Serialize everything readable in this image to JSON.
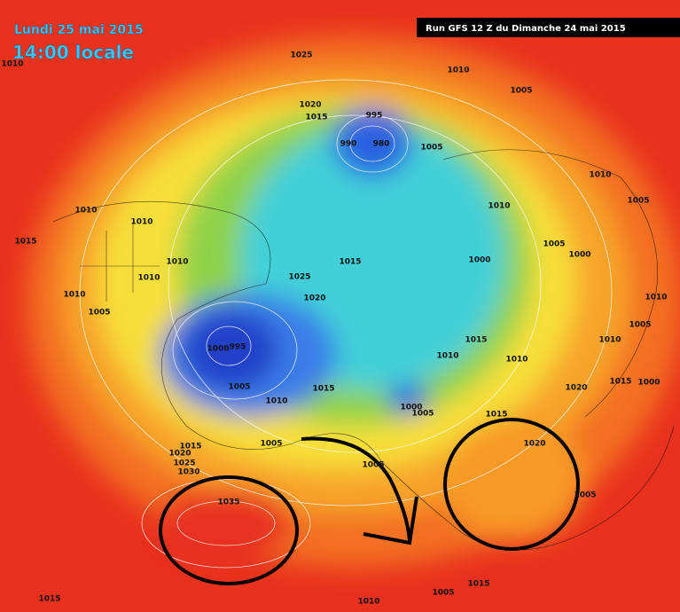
{
  "header": {
    "date": "Lundi 25 mai 2015",
    "time": "14:00 locale",
    "run": "Run GFS 12 Z du Dimanche 24 mai 2015"
  },
  "isobar_labels": [
    "1025",
    "1010",
    "1010",
    "1005",
    "1020",
    "1015",
    "995",
    "990",
    "980",
    "1005",
    "1010",
    "1005",
    "1010",
    "1010",
    "1010",
    "1015",
    "1005",
    "1000",
    "1010",
    "1015",
    "1000",
    "1025",
    "1010",
    "1010",
    "1020",
    "1010",
    "1005",
    "1005",
    "1010",
    "1000",
    "995",
    "1015",
    "1010",
    "1010",
    "1015",
    "1000",
    "1020",
    "1005",
    "1015",
    "1010",
    "1000",
    "1005",
    "1015",
    "1015",
    "1005",
    "1020",
    "1020",
    "1025",
    "1030",
    "1005",
    "1005",
    "1035",
    "1015",
    "1010",
    "1015",
    "1005"
  ]
}
